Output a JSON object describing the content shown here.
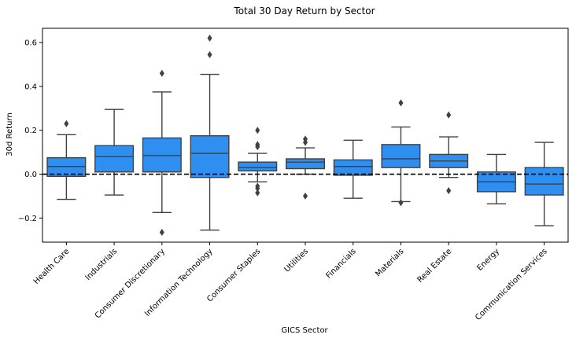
{
  "chart_data": {
    "type": "box",
    "title": "Total 30 Day Return by Sector",
    "xlabel": "GICS Sector",
    "ylabel": "30d Return",
    "ylim": [
      -0.31,
      0.665
    ],
    "yticks": [
      -0.2,
      0.0,
      0.2,
      0.4,
      0.6
    ],
    "ytick_labels": [
      "−0.2",
      "0.0",
      "0.2",
      "0.4",
      "0.6"
    ],
    "reference_line": {
      "y": 0.0,
      "style": "dashed",
      "color": "#000000"
    },
    "grid": false,
    "legend": "none",
    "box_color": "#2e8ff0",
    "line_color": "#404040",
    "categories": [
      "Health Care",
      "Industrials",
      "Consumer Discretionary",
      "Information Technology",
      "Consumer Staples",
      "Utilities",
      "Financials",
      "Materials",
      "Real Estate",
      "Energy",
      "Communication Services"
    ],
    "boxes": [
      {
        "category": "Health Care",
        "whisker_low": -0.115,
        "q1": -0.01,
        "median": 0.035,
        "q3": 0.075,
        "whisker_high": 0.18,
        "outliers": [
          0.23
        ]
      },
      {
        "category": "Industrials",
        "whisker_low": -0.095,
        "q1": 0.01,
        "median": 0.08,
        "q3": 0.13,
        "whisker_high": 0.295,
        "outliers": []
      },
      {
        "category": "Consumer Discretionary",
        "whisker_low": -0.175,
        "q1": 0.01,
        "median": 0.085,
        "q3": 0.165,
        "whisker_high": 0.375,
        "outliers": [
          0.46,
          -0.265
        ]
      },
      {
        "category": "Information Technology",
        "whisker_low": -0.255,
        "q1": -0.015,
        "median": 0.095,
        "q3": 0.175,
        "whisker_high": 0.455,
        "outliers": [
          0.545,
          0.62
        ]
      },
      {
        "category": "Consumer Staples",
        "whisker_low": -0.035,
        "q1": 0.015,
        "median": 0.03,
        "q3": 0.055,
        "whisker_high": 0.095,
        "outliers": [
          0.2,
          0.135,
          0.125,
          -0.055,
          -0.065,
          -0.085
        ]
      },
      {
        "category": "Utilities",
        "whisker_low": 0.0,
        "q1": 0.025,
        "median": 0.055,
        "q3": 0.07,
        "whisker_high": 0.12,
        "outliers": [
          0.16,
          0.145,
          -0.1
        ]
      },
      {
        "category": "Financials",
        "whisker_low": -0.11,
        "q1": -0.005,
        "median": 0.035,
        "q3": 0.065,
        "whisker_high": 0.155,
        "outliers": []
      },
      {
        "category": "Materials",
        "whisker_low": -0.125,
        "q1": 0.03,
        "median": 0.07,
        "q3": 0.135,
        "whisker_high": 0.215,
        "outliers": [
          0.325,
          -0.13
        ]
      },
      {
        "category": "Real Estate",
        "whisker_low": -0.015,
        "q1": 0.03,
        "median": 0.06,
        "q3": 0.09,
        "whisker_high": 0.17,
        "outliers": [
          0.27,
          -0.075
        ]
      },
      {
        "category": "Energy",
        "whisker_low": -0.135,
        "q1": -0.08,
        "median": -0.035,
        "q3": 0.01,
        "whisker_high": 0.09,
        "outliers": []
      },
      {
        "category": "Communication Services",
        "whisker_low": -0.235,
        "q1": -0.095,
        "median": -0.045,
        "q3": 0.03,
        "whisker_high": 0.145,
        "outliers": []
      }
    ]
  }
}
